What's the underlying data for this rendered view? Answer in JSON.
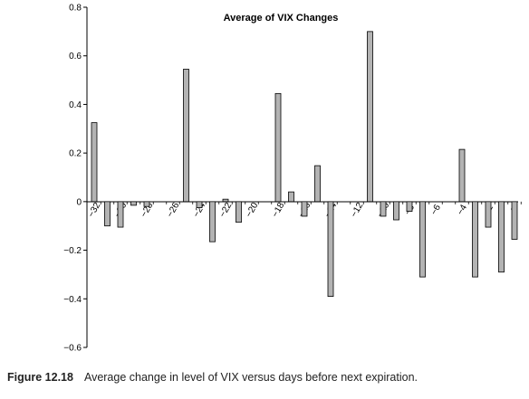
{
  "chart_data": {
    "type": "bar",
    "title": "Average of VIX Changes",
    "xlabel": "",
    "ylabel": "",
    "ylim": [
      -0.6,
      0.8
    ],
    "yticks": [
      "0.8",
      "0.6",
      "0.4",
      "0.2",
      "0",
      "−0.2",
      "−0.4",
      "−0.6"
    ],
    "ytick_values": [
      0.8,
      0.6,
      0.4,
      0.2,
      0,
      -0.2,
      -0.4,
      -0.6
    ],
    "xtick_labels": [
      "−32",
      "−30",
      "−28",
      "−26",
      "−24",
      "−22",
      "−20",
      "−18",
      "−16",
      "−14",
      "−12",
      "−10",
      "−8",
      "−6",
      "−4",
      "−2",
      "0"
    ],
    "x": [
      -32,
      -31,
      -30,
      -29,
      -28,
      -27,
      -26,
      -25,
      -24,
      -23,
      -22,
      -21,
      -20,
      -19,
      -18,
      -17,
      -16,
      -15,
      -14,
      -13,
      -12,
      -11,
      -10,
      -9,
      -8,
      -7,
      -6,
      -5,
      -4,
      -3,
      -2,
      -1,
      0,
      1
    ],
    "values": [
      0.325,
      -0.1,
      -0.105,
      -0.015,
      -0.02,
      0.0,
      0.0,
      0.545,
      -0.025,
      -0.165,
      0.01,
      -0.085,
      0.0,
      0.0,
      0.445,
      0.04,
      -0.06,
      0.148,
      -0.39,
      0.0,
      0.0,
      0.7,
      -0.06,
      -0.075,
      -0.04,
      -0.31,
      0.0,
      0.0,
      0.215,
      -0.31,
      -0.105,
      -0.29,
      -0.155,
      0.0
    ],
    "grid": false,
    "bar_color": "#b3b3b3"
  },
  "caption": {
    "label": "Figure 12.18",
    "text": "Average change in level of VIX versus days before next expiration."
  }
}
